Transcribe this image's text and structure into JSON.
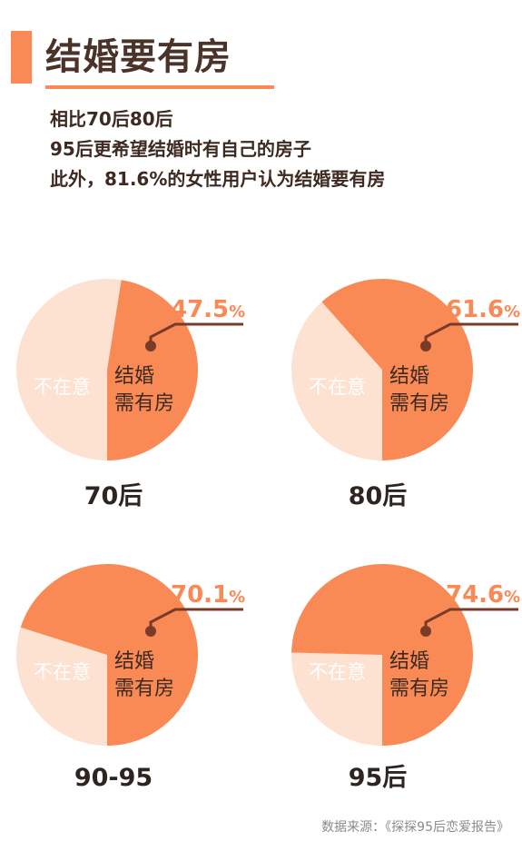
{
  "title": "结婚要有房",
  "subtitle_lines": [
    "相比70后80后",
    "95后更希望结婚时有自己的房子",
    "此外，81.6%的女性用户认为结婚要有房"
  ],
  "source": "数据来源：《探探95后恋爱报告》",
  "colors": {
    "accent": "#f98a55",
    "light": "#fde2d1",
    "dark_line": "#7a3a28",
    "title_text": "#4a3328"
  },
  "chart_data": [
    {
      "type": "pie",
      "title": "70后",
      "slices": [
        {
          "label": "结婚\n需有房",
          "value": 47.5,
          "value_label": "47.5",
          "unit": "%"
        },
        {
          "label": "不在意",
          "value": 52.5
        }
      ]
    },
    {
      "type": "pie",
      "title": "80后",
      "slices": [
        {
          "label": "结婚\n需有房",
          "value": 61.6,
          "value_label": "61.6",
          "unit": "%"
        },
        {
          "label": "不在意",
          "value": 38.4
        }
      ]
    },
    {
      "type": "pie",
      "title": "90-95",
      "slices": [
        {
          "label": "结婚\n需有房",
          "value": 70.1,
          "value_label": "70.1",
          "unit": "%"
        },
        {
          "label": "不在意",
          "value": 29.9
        }
      ]
    },
    {
      "type": "pie",
      "title": "95后",
      "slices": [
        {
          "label": "结婚\n需有房",
          "value": 74.6,
          "value_label": "74.6",
          "unit": "%"
        },
        {
          "label": "不在意",
          "value": 25.4
        }
      ]
    }
  ]
}
